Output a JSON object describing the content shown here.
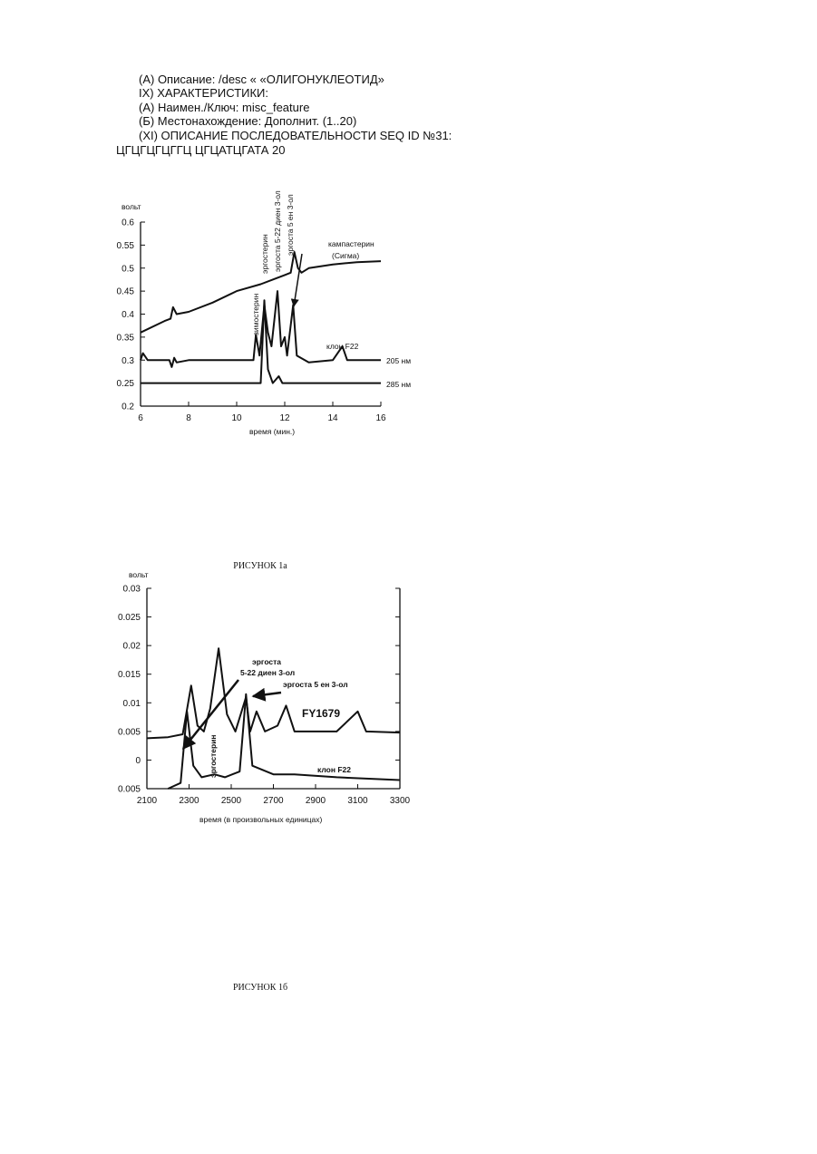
{
  "text_lines": [
    "(A) Описание: /desc « «ОЛИГОНУКЛЕОТИД»",
    "IX) ХАРАКТЕРИСТИКИ:",
    "(A) Наимен./Ключ: misc_feature",
    "(Б) Местонахождение: Дополнит. (1..20)",
    "(XI) ОПИСАНИЕ ПОСЛЕДОВАТЕЛЬНОСТИ SEQ ID №31:",
    "ЦГЦГЦГЦГГЦ ЦГЦАТЦГАТА 20"
  ],
  "chart_data": [
    {
      "type": "line",
      "caption": "РИСУНОК 1а",
      "y_label": "вольт",
      "x_label": "время (мин.)",
      "xlim": [
        6,
        16
      ],
      "xticks": [
        6,
        8,
        10,
        12,
        14,
        16
      ],
      "ylim": [
        0.2,
        0.6
      ],
      "yticks": [
        0.2,
        0.25,
        0.3,
        0.35,
        0.4,
        0.45,
        0.5,
        0.55,
        0.6
      ],
      "annotations": [
        "кампастерин",
        "(Сигма)",
        "клон F22",
        "205 нм",
        "285 нм",
        "зимостерин",
        "эргостерин",
        "эргоста 5-22 диен 3-ол",
        "эргоста 5 ен 3-ол"
      ],
      "series": [
        {
          "color": "#111",
          "x": [
            6,
            7,
            7.25,
            7.35,
            7.5,
            8,
            9,
            10,
            11,
            11.5,
            12,
            12.25,
            12.4,
            12.55,
            12.7,
            13,
            14,
            15,
            16
          ],
          "values": [
            0.36,
            0.385,
            0.39,
            0.415,
            0.4,
            0.405,
            0.425,
            0.45,
            0.465,
            0.475,
            0.485,
            0.49,
            0.535,
            0.5,
            0.49,
            0.5,
            0.508,
            0.513,
            0.515
          ]
        },
        {
          "color": "#111",
          "x": [
            6,
            6.1,
            6.3,
            7.2,
            7.3,
            7.4,
            7.5,
            8,
            10.7,
            10.8,
            10.95,
            11.15,
            11.3,
            11.45,
            11.7,
            11.85,
            12,
            12.1,
            12.35,
            12.5,
            13,
            14,
            14.4,
            14.6,
            16
          ],
          "values": [
            0.3,
            0.315,
            0.3,
            0.3,
            0.285,
            0.305,
            0.295,
            0.3,
            0.3,
            0.355,
            0.31,
            0.42,
            0.36,
            0.33,
            0.45,
            0.33,
            0.35,
            0.31,
            0.42,
            0.31,
            0.295,
            0.3,
            0.33,
            0.3,
            0.3
          ]
        },
        {
          "color": "#111",
          "x": [
            6,
            11,
            11.15,
            11.3,
            11.5,
            11.75,
            11.9,
            16
          ],
          "values": [
            0.25,
            0.25,
            0.43,
            0.28,
            0.25,
            0.265,
            0.25,
            0.25
          ]
        }
      ]
    },
    {
      "type": "line",
      "caption": "РИСУНОК 1б",
      "y_label": "вольт",
      "x_label": "время (в произвольных единицах)",
      "xlim": [
        2100,
        3300
      ],
      "xticks": [
        2100,
        2300,
        2500,
        2700,
        2900,
        3100,
        3300
      ],
      "ylim": [
        -0.005,
        0.03
      ],
      "yticks": [
        {
          "value": -0.005,
          "label": "0.005"
        },
        0,
        0.005,
        0.01,
        0.015,
        0.02,
        0.025,
        0.03
      ],
      "annotations": [
        "эргоста",
        "5-22 диен 3-ол",
        "эргоста 5 ен 3-ол",
        "FY1679",
        "эргостерин",
        "клон F22"
      ],
      "series": [
        {
          "color": "#111",
          "x": [
            2100,
            2200,
            2270,
            2310,
            2340,
            2370,
            2400,
            2440,
            2480,
            2520,
            2570,
            2590,
            2620,
            2660,
            2720,
            2760,
            2800,
            3000,
            3100,
            3140,
            3300
          ],
          "values": [
            0.0038,
            0.004,
            0.0045,
            0.013,
            0.006,
            0.005,
            0.009,
            0.0195,
            0.008,
            0.005,
            0.011,
            0.005,
            0.0085,
            0.005,
            0.006,
            0.0095,
            0.005,
            0.005,
            0.0085,
            0.005,
            0.0048
          ]
        },
        {
          "color": "#111",
          "x": [
            2200,
            2260,
            2290,
            2320,
            2360,
            2420,
            2470,
            2540,
            2570,
            2600,
            2700,
            2800,
            3000,
            3300
          ],
          "values": [
            -0.005,
            -0.004,
            0.0085,
            -0.001,
            -0.003,
            -0.0025,
            -0.003,
            -0.002,
            0.0115,
            -0.001,
            -0.0025,
            -0.0025,
            -0.003,
            -0.0035
          ]
        }
      ]
    }
  ]
}
